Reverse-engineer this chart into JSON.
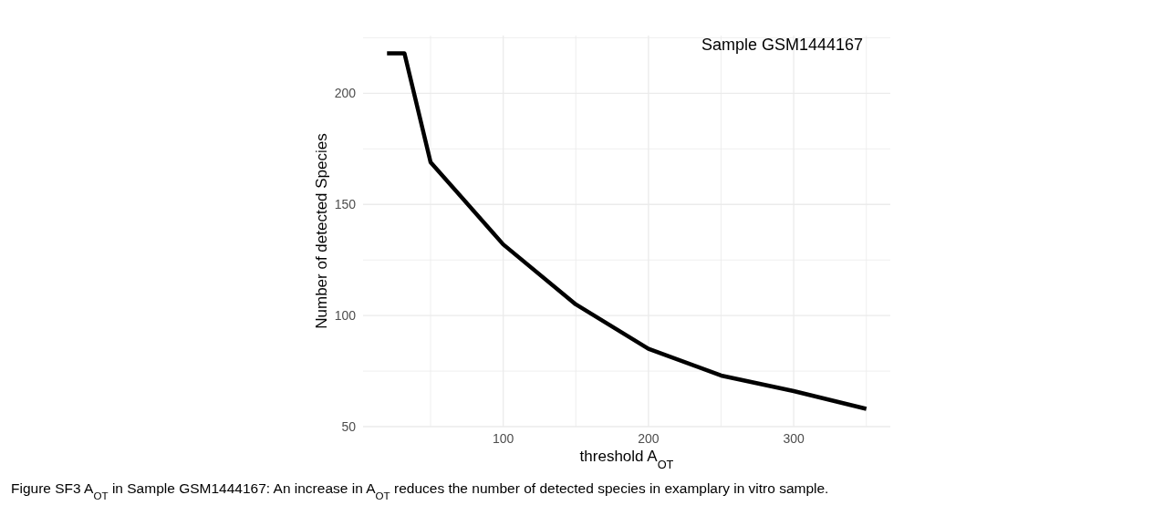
{
  "chart_data": {
    "type": "line",
    "xlabel": "threshold A$_{OT}$",
    "ylabel": "Number of detected Species",
    "x": [
      20,
      32,
      50,
      100,
      150,
      200,
      250,
      300,
      350
    ],
    "series": [
      {
        "color": "#000000",
        "values": [
          218,
          218,
          169,
          132,
          105,
          85,
          73,
          66,
          58
        ]
      }
    ],
    "xlim": [
      3.5,
      366.5
    ],
    "xticks": [
      {
        "value": 50,
        "label": null
      },
      100,
      {
        "value": 150,
        "label": null
      },
      200,
      {
        "value": 250,
        "label": null
      },
      300,
      {
        "value": 350,
        "label": null
      }
    ],
    "ylim": [
      50,
      226
    ],
    "yticks": [
      50,
      {
        "value": 75,
        "label": null
      },
      100,
      {
        "value": 125,
        "label": null
      },
      150,
      {
        "value": 175,
        "label": null
      },
      200,
      {
        "value": 225,
        "label": null
      }
    ],
    "grid": true,
    "marker": "none",
    "line_style": "solid",
    "annotations": [
      "Sample GSM1444167",
      "Figure SF3 A$_{OT}$ in Sample GSM1444167: An increase in A$_{OT}$ reduces the number of detected species in examplary in vitro sample."
    ]
  }
}
